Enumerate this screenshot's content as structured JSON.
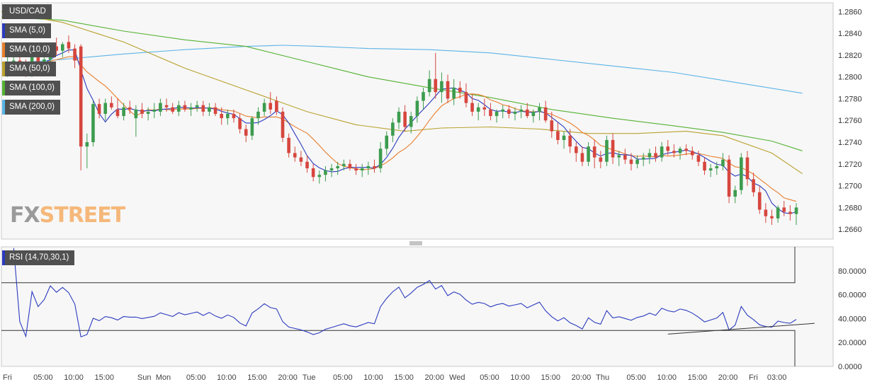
{
  "chart_data": {
    "type": "candlestick",
    "symbol": "USD/CAD",
    "price_axis": {
      "ticks": [
        "1.2860",
        "1.2840",
        "1.2820",
        "1.2800",
        "1.2780",
        "1.2760",
        "1.2740",
        "1.2720",
        "1.2700",
        "1.2680",
        "1.2660"
      ],
      "ylim": [
        1.2651,
        1.2868
      ]
    },
    "time_axis": {
      "labels": [
        "Fri",
        "05:00",
        "10:00",
        "15:00",
        "Sun",
        "Mon",
        "05:00",
        "10:00",
        "15:00",
        "20:00",
        "Tue",
        "05:00",
        "10:00",
        "15:00",
        "20:00",
        "Wed",
        "05:00",
        "10:00",
        "15:00",
        "20:00",
        "Thu",
        "05:00",
        "10:00",
        "15:00",
        "20:00",
        "Fri",
        "03:00"
      ],
      "label_bar_index": [
        0,
        5,
        10,
        15,
        22,
        25,
        30,
        35,
        40,
        45,
        49,
        54,
        59,
        64,
        69,
        73,
        78,
        83,
        88,
        93,
        97,
        102,
        107,
        112,
        117,
        122,
        125
      ]
    },
    "bars_count": 131,
    "candles": [
      [
        1.281,
        1.2818,
        1.28,
        1.2812
      ],
      [
        1.2812,
        1.282,
        1.2805,
        1.2815
      ],
      [
        1.2815,
        1.2822,
        1.2808,
        1.281
      ],
      [
        1.281,
        1.2816,
        1.28,
        1.2806
      ],
      [
        1.2806,
        1.282,
        1.28,
        1.2818
      ],
      [
        1.2818,
        1.2826,
        1.281,
        1.2812
      ],
      [
        1.2812,
        1.282,
        1.2805,
        1.2816
      ],
      [
        1.2816,
        1.283,
        1.2812,
        1.2828
      ],
      [
        1.2828,
        1.2836,
        1.282,
        1.2824
      ],
      [
        1.2824,
        1.2832,
        1.2818,
        1.283
      ],
      [
        1.2832,
        1.2838,
        1.2822,
        1.2826
      ],
      [
        1.2826,
        1.283,
        1.2808,
        1.2815
      ],
      [
        1.2828,
        1.283,
        1.2714,
        1.2736
      ],
      [
        1.2736,
        1.2748,
        1.2716,
        1.274
      ],
      [
        1.274,
        1.2778,
        1.2736,
        1.2775
      ],
      [
        1.2775,
        1.278,
        1.2762,
        1.2766
      ],
      [
        1.2766,
        1.278,
        1.276,
        1.2776
      ],
      [
        1.2776,
        1.2782,
        1.277,
        1.2772
      ],
      [
        1.277,
        1.278,
        1.2762,
        1.2764
      ],
      [
        1.2764,
        1.2776,
        1.276,
        1.2772
      ],
      [
        1.2772,
        1.2778,
        1.2766,
        1.277
      ],
      [
        1.2762,
        1.2774,
        1.2745,
        1.277
      ],
      [
        1.277,
        1.2776,
        1.2762,
        1.2766
      ],
      [
        1.2766,
        1.2772,
        1.276,
        1.2768
      ],
      [
        1.2768,
        1.2776,
        1.2762,
        1.277
      ],
      [
        1.2768,
        1.278,
        1.2764,
        1.2776
      ],
      [
        1.2774,
        1.278,
        1.2768,
        1.2772
      ],
      [
        1.2772,
        1.2776,
        1.2766,
        1.2768
      ],
      [
        1.2768,
        1.2778,
        1.2764,
        1.2774
      ],
      [
        1.2774,
        1.2778,
        1.2768,
        1.277
      ],
      [
        1.277,
        1.2776,
        1.2764,
        1.2772
      ],
      [
        1.2772,
        1.2778,
        1.2768,
        1.2774
      ],
      [
        1.2774,
        1.2778,
        1.2764,
        1.2768
      ],
      [
        1.2768,
        1.2776,
        1.2764,
        1.2772
      ],
      [
        1.2772,
        1.2776,
        1.2764,
        1.2766
      ],
      [
        1.2766,
        1.2772,
        1.2756,
        1.2762
      ],
      [
        1.2762,
        1.277,
        1.2756,
        1.2766
      ],
      [
        1.2766,
        1.277,
        1.2758,
        1.2762
      ],
      [
        1.2762,
        1.2766,
        1.2748,
        1.2752
      ],
      [
        1.2752,
        1.2756,
        1.274,
        1.2746
      ],
      [
        1.2746,
        1.2764,
        1.2742,
        1.2762
      ],
      [
        1.2762,
        1.2772,
        1.2756,
        1.2768
      ],
      [
        1.2768,
        1.278,
        1.2764,
        1.2776
      ],
      [
        1.2776,
        1.2786,
        1.2766,
        1.277
      ],
      [
        1.2778,
        1.2782,
        1.2765,
        1.2768
      ],
      [
        1.2768,
        1.2772,
        1.274,
        1.2744
      ],
      [
        1.2744,
        1.2748,
        1.2726,
        1.273
      ],
      [
        1.273,
        1.2736,
        1.2722,
        1.2726
      ],
      [
        1.2726,
        1.2732,
        1.2718,
        1.2722
      ],
      [
        1.2722,
        1.2728,
        1.2712,
        1.2716
      ],
      [
        1.2716,
        1.272,
        1.2704,
        1.2708
      ],
      [
        1.2708,
        1.2714,
        1.2702,
        1.271
      ],
      [
        1.271,
        1.2718,
        1.2704,
        1.2714
      ],
      [
        1.2714,
        1.272,
        1.2708,
        1.2716
      ],
      [
        1.2716,
        1.2722,
        1.271,
        1.2718
      ],
      [
        1.2718,
        1.2724,
        1.2714,
        1.272
      ],
      [
        1.272,
        1.2724,
        1.2714,
        1.2716
      ],
      [
        1.2716,
        1.272,
        1.271,
        1.2714
      ],
      [
        1.2714,
        1.272,
        1.2708,
        1.2716
      ],
      [
        1.2716,
        1.2722,
        1.271,
        1.2718
      ],
      [
        1.2718,
        1.2724,
        1.2712,
        1.2716
      ],
      [
        1.2716,
        1.274,
        1.2712,
        1.2734
      ],
      [
        1.2734,
        1.275,
        1.2728,
        1.2746
      ],
      [
        1.2746,
        1.2762,
        1.274,
        1.2758
      ],
      [
        1.2758,
        1.2772,
        1.2752,
        1.2768
      ],
      [
        1.2768,
        1.2774,
        1.275,
        1.2754
      ],
      [
        1.2754,
        1.2768,
        1.2748,
        1.2764
      ],
      [
        1.2764,
        1.2782,
        1.2758,
        1.2778
      ],
      [
        1.2778,
        1.279,
        1.277,
        1.2786
      ],
      [
        1.2786,
        1.2806,
        1.2782,
        1.2798
      ],
      [
        1.2798,
        1.2822,
        1.278,
        1.2786
      ],
      [
        1.2786,
        1.2804,
        1.2776,
        1.2796
      ],
      [
        1.2796,
        1.2802,
        1.2776,
        1.278
      ],
      [
        1.278,
        1.2798,
        1.2774,
        1.279
      ],
      [
        1.279,
        1.2796,
        1.278,
        1.2786
      ],
      [
        1.2786,
        1.2794,
        1.2772,
        1.2776
      ],
      [
        1.2776,
        1.2784,
        1.2764,
        1.2768
      ],
      [
        1.2768,
        1.2776,
        1.276,
        1.2772
      ],
      [
        1.2772,
        1.278,
        1.2764,
        1.277
      ],
      [
        1.277,
        1.2776,
        1.276,
        1.2764
      ],
      [
        1.2764,
        1.277,
        1.2758,
        1.2768
      ],
      [
        1.2768,
        1.2774,
        1.2762,
        1.277
      ],
      [
        1.277,
        1.2774,
        1.2762,
        1.2766
      ],
      [
        1.2766,
        1.2772,
        1.276,
        1.2768
      ],
      [
        1.2768,
        1.2774,
        1.2762,
        1.277
      ],
      [
        1.277,
        1.2776,
        1.2762,
        1.2764
      ],
      [
        1.2764,
        1.277,
        1.2758,
        1.2768
      ],
      [
        1.2768,
        1.2776,
        1.276,
        1.2772
      ],
      [
        1.2772,
        1.2778,
        1.2758,
        1.276
      ],
      [
        1.276,
        1.2768,
        1.2744,
        1.275
      ],
      [
        1.275,
        1.2758,
        1.2738,
        1.2742
      ],
      [
        1.2742,
        1.275,
        1.2734,
        1.2746
      ],
      [
        1.2746,
        1.2752,
        1.273,
        1.2736
      ],
      [
        1.2736,
        1.274,
        1.2722,
        1.273
      ],
      [
        1.273,
        1.2736,
        1.2718,
        1.2722
      ],
      [
        1.2722,
        1.274,
        1.2718,
        1.2736
      ],
      [
        1.2736,
        1.2742,
        1.2716,
        1.2726
      ],
      [
        1.2726,
        1.2732,
        1.2716,
        1.2722
      ],
      [
        1.2722,
        1.2746,
        1.2718,
        1.2742
      ],
      [
        1.2742,
        1.2748,
        1.272,
        1.2726
      ],
      [
        1.2726,
        1.2732,
        1.2718,
        1.2728
      ],
      [
        1.2728,
        1.2734,
        1.272,
        1.2724
      ],
      [
        1.2724,
        1.273,
        1.2714,
        1.272
      ],
      [
        1.272,
        1.2728,
        1.2716,
        1.2724
      ],
      [
        1.2724,
        1.273,
        1.2718,
        1.2726
      ],
      [
        1.2726,
        1.2734,
        1.272,
        1.273
      ],
      [
        1.273,
        1.2736,
        1.2722,
        1.2726
      ],
      [
        1.2726,
        1.274,
        1.2722,
        1.2736
      ],
      [
        1.2736,
        1.2742,
        1.2728,
        1.2732
      ],
      [
        1.2732,
        1.2738,
        1.2726,
        1.273
      ],
      [
        1.273,
        1.2736,
        1.2724,
        1.2734
      ],
      [
        1.2734,
        1.2738,
        1.2728,
        1.2732
      ],
      [
        1.2732,
        1.2736,
        1.2724,
        1.2728
      ],
      [
        1.2728,
        1.2732,
        1.2718,
        1.2722
      ],
      [
        1.2722,
        1.2726,
        1.271,
        1.2714
      ],
      [
        1.2714,
        1.272,
        1.2708,
        1.2716
      ],
      [
        1.2716,
        1.2722,
        1.271,
        1.2718
      ],
      [
        1.2718,
        1.273,
        1.2714,
        1.2724
      ],
      [
        1.2724,
        1.2728,
        1.2684,
        1.269
      ],
      [
        1.269,
        1.27,
        1.2684,
        1.2696
      ],
      [
        1.2696,
        1.273,
        1.2692,
        1.2726
      ],
      [
        1.2726,
        1.2732,
        1.27,
        1.2706
      ],
      [
        1.2706,
        1.2712,
        1.269,
        1.2694
      ],
      [
        1.2694,
        1.27,
        1.2674,
        1.2678
      ],
      [
        1.2678,
        1.2684,
        1.2666,
        1.2672
      ],
      [
        1.2672,
        1.2678,
        1.2664,
        1.267
      ],
      [
        1.267,
        1.2682,
        1.2666,
        1.268
      ],
      [
        1.268,
        1.2686,
        1.2672,
        1.2676
      ],
      [
        1.2676,
        1.2682,
        1.2668,
        1.2674
      ],
      [
        1.2674,
        1.2684,
        1.2664,
        1.268
      ]
    ],
    "candle_format": "[open, high, low, close]",
    "overlays": [
      {
        "name": "SMA (5,0)",
        "color": "#2b3bbf"
      },
      {
        "name": "SMA (10,0)",
        "color": "#e87e2c"
      },
      {
        "name": "SMA (50,0)",
        "color": "#b9a12e"
      },
      {
        "name": "SMA (100,0)",
        "color": "#55b233"
      },
      {
        "name": "SMA (200,0)",
        "color": "#5ab3e6"
      }
    ],
    "long_sma": {
      "sma50": [
        [
          0,
          1.286
        ],
        [
          10,
          1.285
        ],
        [
          20,
          1.2832
        ],
        [
          30,
          1.2808
        ],
        [
          40,
          1.2788
        ],
        [
          50,
          1.2768
        ],
        [
          58,
          1.2756
        ],
        [
          66,
          1.275
        ],
        [
          72,
          1.2753
        ],
        [
          80,
          1.2754
        ],
        [
          88,
          1.2752
        ],
        [
          96,
          1.2748
        ],
        [
          104,
          1.2748
        ],
        [
          112,
          1.275
        ],
        [
          118,
          1.2746
        ],
        [
          126,
          1.273
        ],
        [
          131,
          1.2711
        ]
      ],
      "sma100": [
        [
          0,
          1.2855
        ],
        [
          10,
          1.2852
        ],
        [
          20,
          1.2842
        ],
        [
          30,
          1.2834
        ],
        [
          40,
          1.2828
        ],
        [
          50,
          1.2814
        ],
        [
          60,
          1.28
        ],
        [
          70,
          1.279
        ],
        [
          80,
          1.2781
        ],
        [
          90,
          1.277
        ],
        [
          100,
          1.2762
        ],
        [
          110,
          1.2755
        ],
        [
          118,
          1.2749
        ],
        [
          126,
          1.2741
        ],
        [
          131,
          1.2732
        ]
      ],
      "sma200": [
        [
          0,
          1.2812
        ],
        [
          10,
          1.2816
        ],
        [
          20,
          1.2821
        ],
        [
          30,
          1.2825
        ],
        [
          40,
          1.2828
        ],
        [
          46,
          1.2829
        ],
        [
          52,
          1.2828
        ],
        [
          60,
          1.2826
        ],
        [
          70,
          1.2825
        ],
        [
          80,
          1.2822
        ],
        [
          90,
          1.2816
        ],
        [
          100,
          1.281
        ],
        [
          110,
          1.2804
        ],
        [
          120,
          1.2795
        ],
        [
          131,
          1.2785
        ]
      ]
    },
    "rsi": {
      "name": "RSI (14,70,30,1)",
      "color": "#2b3bbf",
      "ticks": [
        "80.0000",
        "60.0000",
        "40.0000",
        "20.0000",
        "0.0000"
      ],
      "ylim": [
        0,
        100
      ],
      "levels": [
        70,
        30
      ],
      "trendline": [
        [
          109,
          27
        ],
        [
          133,
          36
        ]
      ]
    },
    "legend_placement": "top-left",
    "grid": true
  },
  "watermark": {
    "fx": "FX",
    "street": "STREET"
  }
}
